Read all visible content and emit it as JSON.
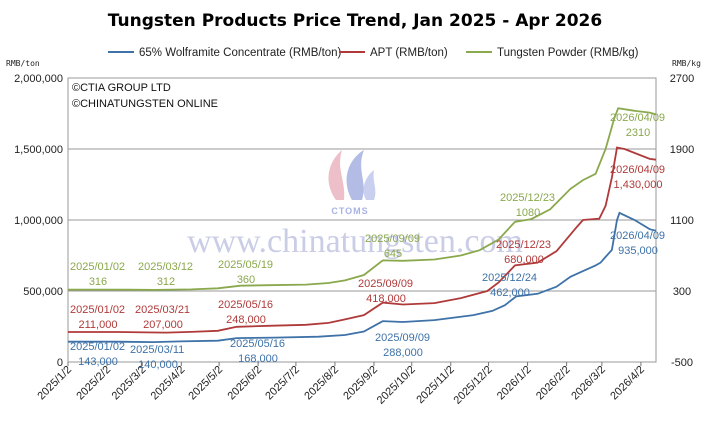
{
  "chart_data": {
    "type": "line",
    "title": "Tungsten Products Price Trend, Jan 2025 - Apr 2026",
    "left_unit": "RMB/ton",
    "right_unit": "RMB/kg",
    "left_axis": {
      "min": 0,
      "max": 2000000,
      "ticks": [
        "0",
        "500,000",
        "1,000,000",
        "1,500,000",
        "2,000,000"
      ],
      "tick_values": [
        0,
        500000,
        1000000,
        1500000,
        2000000
      ]
    },
    "right_axis": {
      "min": -500,
      "max": 2700,
      "ticks": [
        "-500",
        "300",
        "1100",
        "1900",
        "2700"
      ],
      "tick_values": [
        -500,
        300,
        1100,
        1900,
        2700
      ]
    },
    "x_ticks": [
      "2025/1/2",
      "2025/2/2",
      "2025/3/2",
      "2025/4/2",
      "2025/5/2",
      "2025/6/2",
      "2025/7/2",
      "2025/8/2",
      "2025/9/2",
      "2025/10/2",
      "2025/11/2",
      "2025/12/2",
      "2026/1/2",
      "2026/2/2",
      "2026/3/2",
      "2026/4/2"
    ],
    "x_tick_dates": [
      "2025-01-02",
      "2025-02-02",
      "2025-03-02",
      "2025-04-02",
      "2025-05-02",
      "2025-06-02",
      "2025-07-02",
      "2025-08-02",
      "2025-09-02",
      "2025-10-02",
      "2025-11-02",
      "2025-12-02",
      "2026-01-02",
      "2026-02-02",
      "2026-03-02",
      "2026-04-02"
    ],
    "x_range": [
      "2025-01-02",
      "2026-04-14"
    ],
    "grid": "horizontal",
    "legend_position": "top",
    "copyright": [
      "©CTIA GROUP LTD",
      "©CHINATUNGSTEN ONLINE"
    ],
    "watermark": "www.chinatungsten.com",
    "logo_text": "CTOMS",
    "series": [
      {
        "name": "65% Wolframite Concentrate (RMB/ton)",
        "axis": "left",
        "color": "#3e72a8",
        "points": [
          [
            "2025-01-02",
            143000
          ],
          [
            "2025-02-10",
            143000
          ],
          [
            "2025-03-11",
            140000
          ],
          [
            "2025-04-01",
            145000
          ],
          [
            "2025-05-01",
            150000
          ],
          [
            "2025-05-16",
            168000
          ],
          [
            "2025-06-15",
            172000
          ],
          [
            "2025-07-20",
            178000
          ],
          [
            "2025-08-10",
            190000
          ],
          [
            "2025-08-25",
            215000
          ],
          [
            "2025-09-09",
            288000
          ],
          [
            "2025-09-25",
            282000
          ],
          [
            "2025-10-20",
            295000
          ],
          [
            "2025-11-20",
            330000
          ],
          [
            "2025-12-05",
            360000
          ],
          [
            "2025-12-15",
            400000
          ],
          [
            "2025-12-24",
            462000
          ],
          [
            "2026-01-10",
            480000
          ],
          [
            "2026-01-25",
            530000
          ],
          [
            "2026-02-05",
            600000
          ],
          [
            "2026-02-15",
            640000
          ],
          [
            "2026-02-25",
            680000
          ],
          [
            "2026-03-01",
            700000
          ],
          [
            "2026-03-05",
            740000
          ],
          [
            "2026-03-10",
            790000
          ],
          [
            "2026-03-14",
            1000000
          ],
          [
            "2026-03-16",
            1050000
          ],
          [
            "2026-03-28",
            1000000
          ],
          [
            "2026-04-09",
            935000
          ],
          [
            "2026-04-14",
            925000
          ]
        ]
      },
      {
        "name": "APT (RMB/ton)",
        "axis": "left",
        "color": "#b03a3a",
        "points": [
          [
            "2025-01-02",
            211000
          ],
          [
            "2025-02-10",
            211000
          ],
          [
            "2025-03-21",
            207000
          ],
          [
            "2025-04-10",
            212000
          ],
          [
            "2025-05-01",
            220000
          ],
          [
            "2025-05-16",
            248000
          ],
          [
            "2025-06-10",
            255000
          ],
          [
            "2025-07-10",
            262000
          ],
          [
            "2025-07-28",
            275000
          ],
          [
            "2025-08-10",
            300000
          ],
          [
            "2025-08-25",
            330000
          ],
          [
            "2025-09-09",
            418000
          ],
          [
            "2025-09-25",
            405000
          ],
          [
            "2025-10-20",
            415000
          ],
          [
            "2025-11-10",
            450000
          ],
          [
            "2025-12-01",
            500000
          ],
          [
            "2025-12-10",
            560000
          ],
          [
            "2025-12-23",
            680000
          ],
          [
            "2026-01-10",
            700000
          ],
          [
            "2026-01-25",
            780000
          ],
          [
            "2026-02-10",
            950000
          ],
          [
            "2026-02-15",
            1000000
          ],
          [
            "2026-02-28",
            1010000
          ],
          [
            "2026-03-05",
            1100000
          ],
          [
            "2026-03-10",
            1300000
          ],
          [
            "2026-03-14",
            1510000
          ],
          [
            "2026-03-20",
            1500000
          ],
          [
            "2026-04-09",
            1430000
          ],
          [
            "2026-04-14",
            1425000
          ]
        ]
      },
      {
        "name": "Tungsten Powder (RMB/kg)",
        "axis": "right",
        "color": "#8aa84c",
        "points": [
          [
            "2025-01-02",
            316
          ],
          [
            "2025-02-10",
            316
          ],
          [
            "2025-03-12",
            312
          ],
          [
            "2025-04-10",
            318
          ],
          [
            "2025-05-01",
            330
          ],
          [
            "2025-05-19",
            360
          ],
          [
            "2025-06-10",
            365
          ],
          [
            "2025-07-10",
            372
          ],
          [
            "2025-07-28",
            390
          ],
          [
            "2025-08-10",
            420
          ],
          [
            "2025-08-25",
            480
          ],
          [
            "2025-09-09",
            645
          ],
          [
            "2025-09-25",
            640
          ],
          [
            "2025-10-20",
            655
          ],
          [
            "2025-11-10",
            700
          ],
          [
            "2025-11-25",
            760
          ],
          [
            "2025-12-10",
            880
          ],
          [
            "2025-12-23",
            1080
          ],
          [
            "2026-01-05",
            1110
          ],
          [
            "2026-01-20",
            1220
          ],
          [
            "2026-02-05",
            1450
          ],
          [
            "2026-02-15",
            1550
          ],
          [
            "2026-02-25",
            1620
          ],
          [
            "2026-03-05",
            1900
          ],
          [
            "2026-03-12",
            2250
          ],
          [
            "2026-03-15",
            2360
          ],
          [
            "2026-03-28",
            2330
          ],
          [
            "2026-04-09",
            2310
          ],
          [
            "2026-04-14",
            2290
          ]
        ]
      }
    ],
    "annotations": [
      {
        "date": "2025/01/02",
        "value": "316",
        "series": 2
      },
      {
        "date": "2025/03/12",
        "value": "312",
        "series": 2
      },
      {
        "date": "2025/05/19",
        "value": "360",
        "series": 2
      },
      {
        "date": "2025/09/09",
        "value": "645",
        "series": 2
      },
      {
        "date": "2025/12/23",
        "value": "1080",
        "series": 2
      },
      {
        "date": "2026/04/09",
        "value": "2310",
        "series": 2
      },
      {
        "date": "2025/01/02",
        "value": "211,000",
        "series": 1
      },
      {
        "date": "2025/03/21",
        "value": "207,000",
        "series": 1
      },
      {
        "date": "2025/05/16",
        "value": "248,000",
        "series": 1
      },
      {
        "date": "2025/09/09",
        "value": "418,000",
        "series": 1
      },
      {
        "date": "2025/12/23",
        "value": "680,000",
        "series": 1
      },
      {
        "date": "2026/04/09",
        "value": "1,430,000",
        "series": 1
      },
      {
        "date": "2025/01/02",
        "value": "143,000",
        "series": 0
      },
      {
        "date": "2025/03/11",
        "value": "140,000",
        "series": 0
      },
      {
        "date": "2025/05/16",
        "value": "168,000",
        "series": 0
      },
      {
        "date": "2025/09/09",
        "value": "288,000",
        "series": 0
      },
      {
        "date": "2025/12/24",
        "value": "462,000",
        "series": 0
      },
      {
        "date": "2026/04/09",
        "value": "935,000",
        "series": 0
      }
    ]
  }
}
